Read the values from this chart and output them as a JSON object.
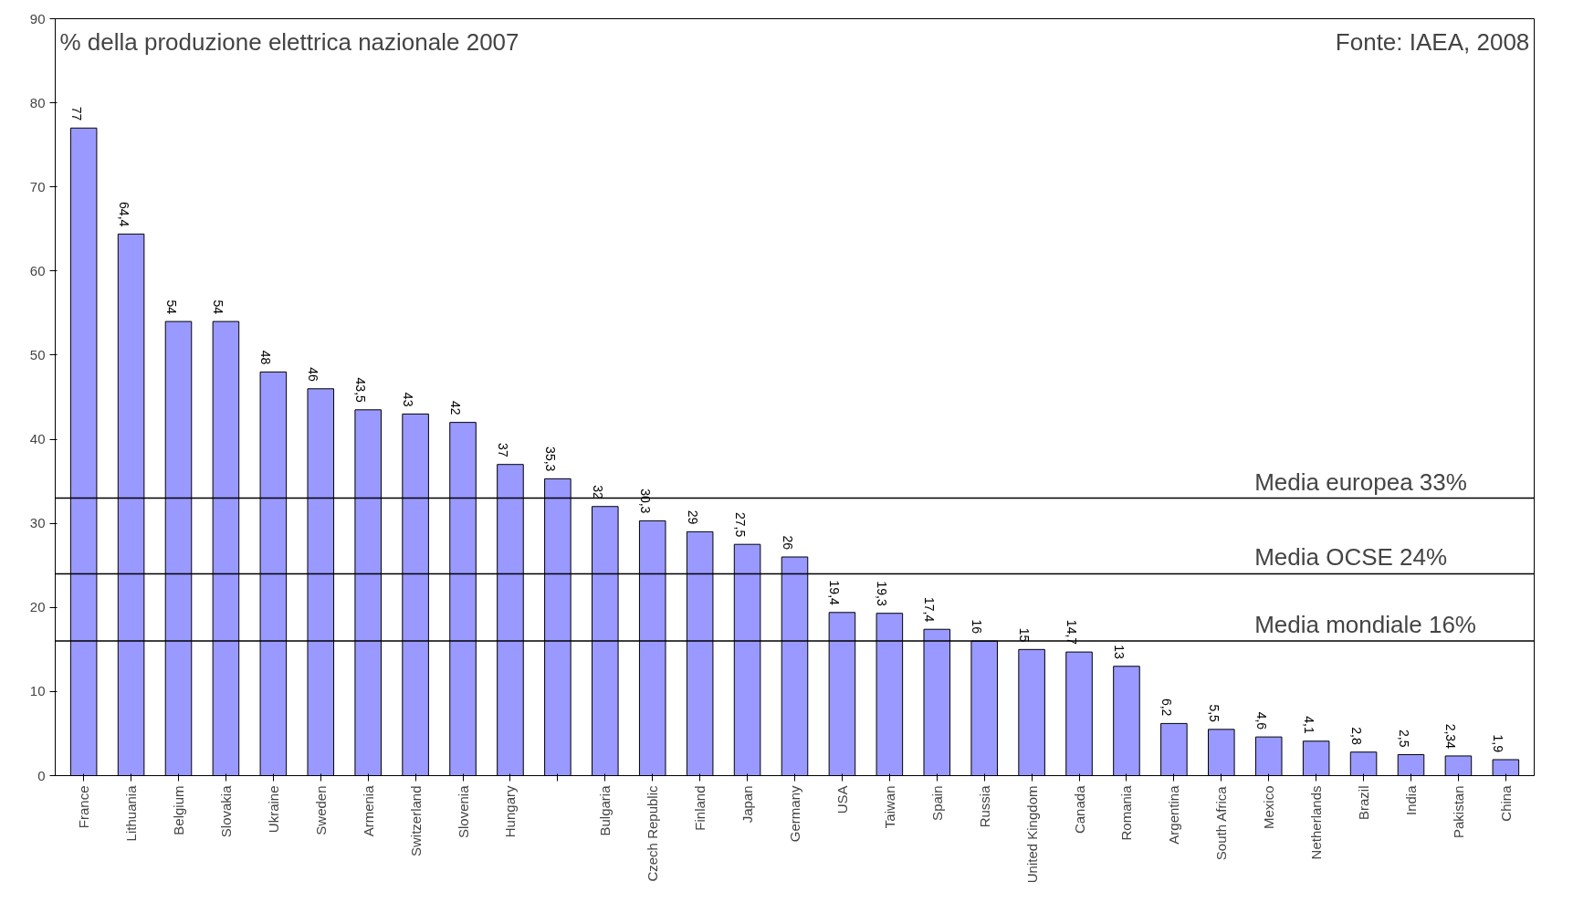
{
  "chart_data": {
    "type": "bar",
    "title": "% della produzione elettrica nazionale 2007",
    "annotations": [
      "Fonte: IAEA, 2008"
    ],
    "categories": [
      "France",
      "Lithuania",
      "Belgium",
      "Slovakia",
      "Ukraine",
      "Sweden",
      "Armenia",
      "Switzerland",
      "Slovenia",
      "Hungary",
      null,
      "Bulgaria",
      "Czech Republic",
      "Finland",
      "Japan",
      "Germany",
      "USA",
      "Taiwan",
      "Spain",
      "Russia",
      "United Kingdom",
      "Canada",
      "Romania",
      "Argentina",
      "South Africa",
      "Mexico",
      "Netherlands",
      "Brazil",
      "India",
      "Pakistan",
      "China"
    ],
    "values": [
      77,
      64.4,
      54,
      54,
      48,
      46,
      43.5,
      43,
      42,
      37,
      35.3,
      32,
      30.3,
      29,
      27.5,
      26,
      19.4,
      19.3,
      17.4,
      16,
      15,
      14.7,
      13,
      6.2,
      5.5,
      4.6,
      4.1,
      2.8,
      2.5,
      2.34,
      1.9
    ],
    "value_labels": [
      "77",
      "64,4",
      "54",
      "54",
      "48",
      "46",
      "43,5",
      "43",
      "42",
      "37",
      "35,3",
      "32",
      "30,3",
      "29",
      "27,5",
      "26",
      "19,4",
      "19,3",
      "17,4",
      "16",
      "15",
      "14,7",
      "13",
      "6,2",
      "5,5",
      "4,6",
      "4,1",
      "2,8",
      "2,5",
      "2,34",
      "1,9"
    ],
    "color": "#9999ff",
    "ylim": [
      0,
      90
    ],
    "yticks": [
      0,
      10,
      20,
      30,
      40,
      50,
      60,
      70,
      80,
      90
    ],
    "grid": false,
    "ref_lines": [
      {
        "axis": "y",
        "value": 33,
        "label": "Media europea    33%",
        "color": "#000000"
      },
      {
        "axis": "y",
        "value": 24,
        "label": "Media OCSE        24%",
        "color": "#000000"
      },
      {
        "axis": "y",
        "value": 16,
        "label": "Media mondiale  16%",
        "color": "#000000"
      }
    ]
  }
}
